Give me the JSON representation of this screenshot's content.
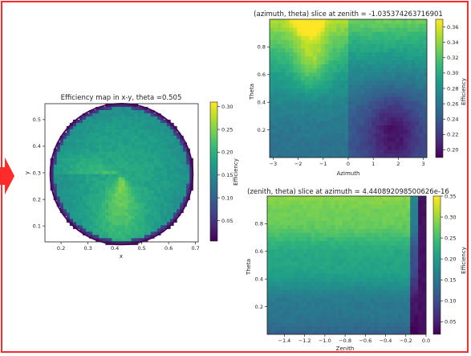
{
  "frame": {
    "border_color": "#ff2a2a",
    "arrow_color": "#ff2a2a"
  },
  "colormap": {
    "name": "viridis",
    "stops": [
      "#440154",
      "#482878",
      "#3e4989",
      "#31688e",
      "#26828e",
      "#1f9e89",
      "#35b779",
      "#6ece58",
      "#b5de2b",
      "#fde725"
    ]
  },
  "chart_data": [
    {
      "id": "xy",
      "type": "heatmap",
      "title": "Efficiency map in x-y, theta =0.505",
      "xlabel": "x",
      "ylabel": "y",
      "xlim": [
        0.14,
        0.71
      ],
      "ylim": [
        0.04,
        0.56
      ],
      "xticks": [
        "0.2",
        "0.3",
        "0.4",
        "0.5",
        "0.6",
        "0.7"
      ],
      "xtick_values": [
        0.2,
        0.3,
        0.4,
        0.5,
        0.6,
        0.7
      ],
      "yticks": [
        "0.1",
        "0.2",
        "0.3",
        "0.4",
        "0.5"
      ],
      "ytick_values": [
        0.1,
        0.2,
        0.3,
        0.4,
        0.5
      ],
      "circle": {
        "center": [
          0.425,
          0.295
        ],
        "radius": 0.265
      },
      "colorbar": {
        "label": "Efficiency",
        "range": [
          0.005,
          0.31
        ],
        "ticks": [
          "0.05",
          "0.10",
          "0.15",
          "0.20",
          "0.25",
          "0.30"
        ],
        "tick_values": [
          0.05,
          0.1,
          0.15,
          0.2,
          0.25,
          0.3
        ]
      }
    },
    {
      "id": "az",
      "type": "heatmap",
      "title": "(azimuth, theta) slice at zenith = -1.035374263716901",
      "xlabel": "Azimuth",
      "ylabel": "Theta",
      "xlim": [
        -3.14,
        3.14
      ],
      "ylim": [
        0.0,
        1.0
      ],
      "xticks": [
        "−3",
        "−2",
        "−1",
        "0",
        "1",
        "2",
        "3"
      ],
      "xtick_values": [
        -3,
        -2,
        -1,
        0,
        1,
        2,
        3
      ],
      "yticks": [
        "0.2",
        "0.4",
        "0.6",
        "0.8"
      ],
      "ytick_values": [
        0.2,
        0.4,
        0.6,
        0.8
      ],
      "colorbar": {
        "label": "Efficiency",
        "range": [
          0.19,
          0.37
        ],
        "ticks": [
          "0.20",
          "0.22",
          "0.24",
          "0.26",
          "0.28",
          "0.30",
          "0.32",
          "0.34",
          "0.36"
        ],
        "tick_values": [
          0.2,
          0.22,
          0.24,
          0.26,
          0.28,
          0.3,
          0.32,
          0.34,
          0.36
        ]
      }
    },
    {
      "id": "zen",
      "type": "heatmap",
      "title": "(zenith, theta) slice at azimuth = 4.440892098500626e-16",
      "xlabel": "Zenith",
      "ylabel": "Theta",
      "xlim": [
        -1.57,
        0.0
      ],
      "ylim": [
        0.0,
        1.0
      ],
      "xticks": [
        "−1.4",
        "−1.2",
        "−1.0",
        "−0.8",
        "−0.6",
        "−0.4",
        "−0.2",
        "0.0"
      ],
      "xtick_values": [
        -1.4,
        -1.2,
        -1.0,
        -0.8,
        -0.6,
        -0.4,
        -0.2,
        0.0
      ],
      "yticks": [
        "0.2",
        "0.4",
        "0.6",
        "0.8"
      ],
      "ytick_values": [
        0.2,
        0.4,
        0.6,
        0.8
      ],
      "colorbar": {
        "label": "Efficiency",
        "range": [
          0.02,
          0.35
        ],
        "ticks": [
          "0.05",
          "0.10",
          "0.15",
          "0.20",
          "0.25",
          "0.30",
          "0.35"
        ],
        "tick_values": [
          0.05,
          0.1,
          0.15,
          0.2,
          0.25,
          0.3,
          0.35
        ]
      }
    }
  ]
}
